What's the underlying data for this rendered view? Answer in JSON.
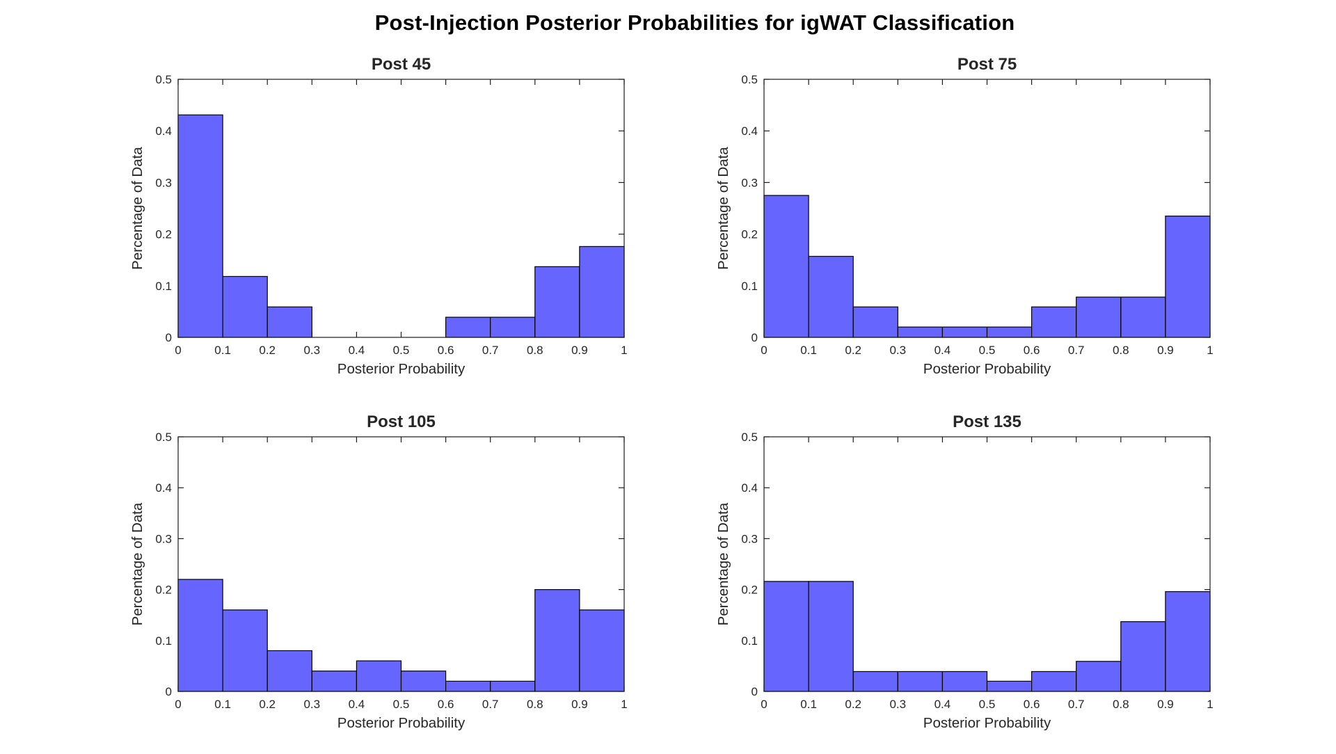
{
  "figure": {
    "title": "Post-Injection Posterior Probabilities for igWAT Classification",
    "background": "#ffffff",
    "bar_fill": "#6666ff",
    "bar_edge": "#000000",
    "axis_color": "#1a1a1a",
    "text_color": "#262626",
    "title_color": "#000000"
  },
  "chart_data": [
    {
      "type": "bar",
      "title": "Post 45",
      "xlabel": "Posterior Probability",
      "ylabel": "Percentage of Data",
      "xlim": [
        0,
        1
      ],
      "ylim": [
        0,
        0.5
      ],
      "grid": false,
      "legend": false,
      "xtick_labels": [
        "0",
        "0.1",
        "0.2",
        "0.3",
        "0.4",
        "0.5",
        "0.6",
        "0.7",
        "0.8",
        "0.9",
        "1"
      ],
      "ytick_labels": [
        "0",
        "0.1",
        "0.2",
        "0.3",
        "0.4",
        "0.5"
      ],
      "bin_edges": [
        0,
        0.1,
        0.2,
        0.3,
        0.4,
        0.5,
        0.6,
        0.7,
        0.8,
        0.9,
        1
      ],
      "values": [
        0.431,
        0.118,
        0.059,
        0,
        0,
        0,
        0.039,
        0.039,
        0.137,
        0.176
      ]
    },
    {
      "type": "bar",
      "title": "Post 75",
      "xlabel": "Posterior Probability",
      "ylabel": "Percentage of Data",
      "xlim": [
        0,
        1
      ],
      "ylim": [
        0,
        0.5
      ],
      "grid": false,
      "legend": false,
      "xtick_labels": [
        "0",
        "0.1",
        "0.2",
        "0.3",
        "0.4",
        "0.5",
        "0.6",
        "0.7",
        "0.8",
        "0.9",
        "1"
      ],
      "ytick_labels": [
        "0",
        "0.1",
        "0.2",
        "0.3",
        "0.4",
        "0.5"
      ],
      "bin_edges": [
        0,
        0.1,
        0.2,
        0.3,
        0.4,
        0.5,
        0.6,
        0.7,
        0.8,
        0.9,
        1
      ],
      "values": [
        0.275,
        0.157,
        0.059,
        0.02,
        0.02,
        0.02,
        0.059,
        0.078,
        0.078,
        0.235
      ]
    },
    {
      "type": "bar",
      "title": "Post 105",
      "xlabel": "Posterior Probability",
      "ylabel": "Percentage of Data",
      "xlim": [
        0,
        1
      ],
      "ylim": [
        0,
        0.5
      ],
      "grid": false,
      "legend": false,
      "xtick_labels": [
        "0",
        "0.1",
        "0.2",
        "0.3",
        "0.4",
        "0.5",
        "0.6",
        "0.7",
        "0.8",
        "0.9",
        "1"
      ],
      "ytick_labels": [
        "0",
        "0.1",
        "0.2",
        "0.3",
        "0.4",
        "0.5"
      ],
      "bin_edges": [
        0,
        0.1,
        0.2,
        0.3,
        0.4,
        0.5,
        0.6,
        0.7,
        0.8,
        0.9,
        1
      ],
      "values": [
        0.22,
        0.16,
        0.08,
        0.04,
        0.06,
        0.04,
        0.02,
        0.02,
        0.2,
        0.16
      ]
    },
    {
      "type": "bar",
      "title": "Post 135",
      "xlabel": "Posterior Probability",
      "ylabel": "Percentage of Data",
      "xlim": [
        0,
        1
      ],
      "ylim": [
        0,
        0.5
      ],
      "grid": false,
      "legend": false,
      "xtick_labels": [
        "0",
        "0.1",
        "0.2",
        "0.3",
        "0.4",
        "0.5",
        "0.6",
        "0.7",
        "0.8",
        "0.9",
        "1"
      ],
      "ytick_labels": [
        "0",
        "0.1",
        "0.2",
        "0.3",
        "0.4",
        "0.5"
      ],
      "bin_edges": [
        0,
        0.1,
        0.2,
        0.3,
        0.4,
        0.5,
        0.6,
        0.7,
        0.8,
        0.9,
        1
      ],
      "values": [
        0.216,
        0.216,
        0.039,
        0.039,
        0.039,
        0.02,
        0.039,
        0.059,
        0.137,
        0.196
      ]
    }
  ]
}
